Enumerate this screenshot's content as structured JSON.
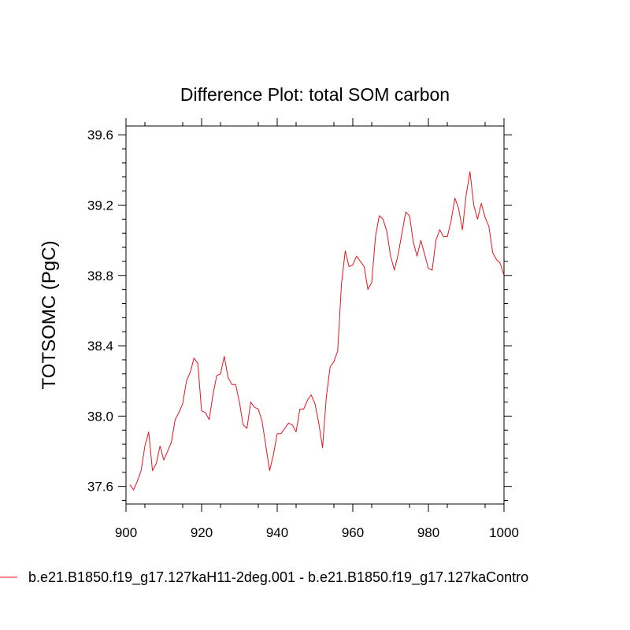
{
  "chart_data": {
    "type": "line",
    "title": "Difference Plot: total SOM carbon",
    "xlabel": "",
    "ylabel": "TOTSOMC  (PgC)",
    "xlim": [
      900,
      1000
    ],
    "ylim": [
      37.5,
      39.65
    ],
    "xticks": [
      900,
      920,
      940,
      960,
      980,
      1000
    ],
    "xtick_labels": [
      "900",
      "920",
      "940",
      "960",
      "980",
      "1000"
    ],
    "yticks": [
      37.6,
      38.0,
      38.4,
      38.8,
      39.2,
      39.6
    ],
    "ytick_labels": [
      "37.6",
      "38.0",
      "38.4",
      "38.8",
      "39.2",
      "39.6"
    ],
    "grid": false,
    "legend_position": "bottom-left",
    "series": [
      {
        "name": "b.e21.B1850.f19_g17.127kaH11-2deg.001 - b.e21.B1850.f19_g17.127kaContro",
        "color": "#e8141e",
        "x": [
          901,
          902,
          903,
          904,
          905,
          906,
          907,
          908,
          909,
          910,
          911,
          912,
          913,
          914,
          915,
          916,
          917,
          918,
          919,
          920,
          921,
          922,
          923,
          924,
          925,
          926,
          927,
          928,
          929,
          930,
          931,
          932,
          933,
          934,
          935,
          936,
          937,
          938,
          939,
          940,
          941,
          942,
          943,
          944,
          945,
          946,
          947,
          948,
          949,
          950,
          951,
          952,
          953,
          954,
          955,
          956,
          957,
          958,
          959,
          960,
          961,
          962,
          963,
          964,
          965,
          966,
          967,
          968,
          969,
          970,
          971,
          972,
          973,
          974,
          975,
          976,
          977,
          978,
          979,
          980,
          981,
          982,
          983,
          984,
          985,
          986,
          987,
          988,
          989,
          990,
          991,
          992,
          993,
          994,
          995,
          996,
          997,
          998,
          999,
          1000
        ],
        "values": [
          37.61,
          37.58,
          37.63,
          37.69,
          37.83,
          37.91,
          37.69,
          37.73,
          37.83,
          37.75,
          37.8,
          37.85,
          37.98,
          38.02,
          38.07,
          38.2,
          38.25,
          38.33,
          38.3,
          38.03,
          38.02,
          37.98,
          38.12,
          38.23,
          38.24,
          38.34,
          38.22,
          38.18,
          38.18,
          38.08,
          37.95,
          37.93,
          38.08,
          38.05,
          38.04,
          37.97,
          37.83,
          37.69,
          37.78,
          37.9,
          37.9,
          37.93,
          37.96,
          37.95,
          37.91,
          38.04,
          38.04,
          38.09,
          38.12,
          38.07,
          37.96,
          37.82,
          38.11,
          38.28,
          38.31,
          38.37,
          38.75,
          38.94,
          38.85,
          38.86,
          38.91,
          38.88,
          38.85,
          38.72,
          38.76,
          39.02,
          39.14,
          39.12,
          39.05,
          38.91,
          38.83,
          38.92,
          39.04,
          39.16,
          39.14,
          38.99,
          38.91,
          39.0,
          38.92,
          38.84,
          38.83,
          39.0,
          39.06,
          39.02,
          39.02,
          39.11,
          39.24,
          39.18,
          39.06,
          39.26,
          39.39,
          39.2,
          39.12,
          39.21,
          39.13,
          39.08,
          38.93,
          38.89,
          38.87,
          38.8
        ]
      }
    ]
  }
}
